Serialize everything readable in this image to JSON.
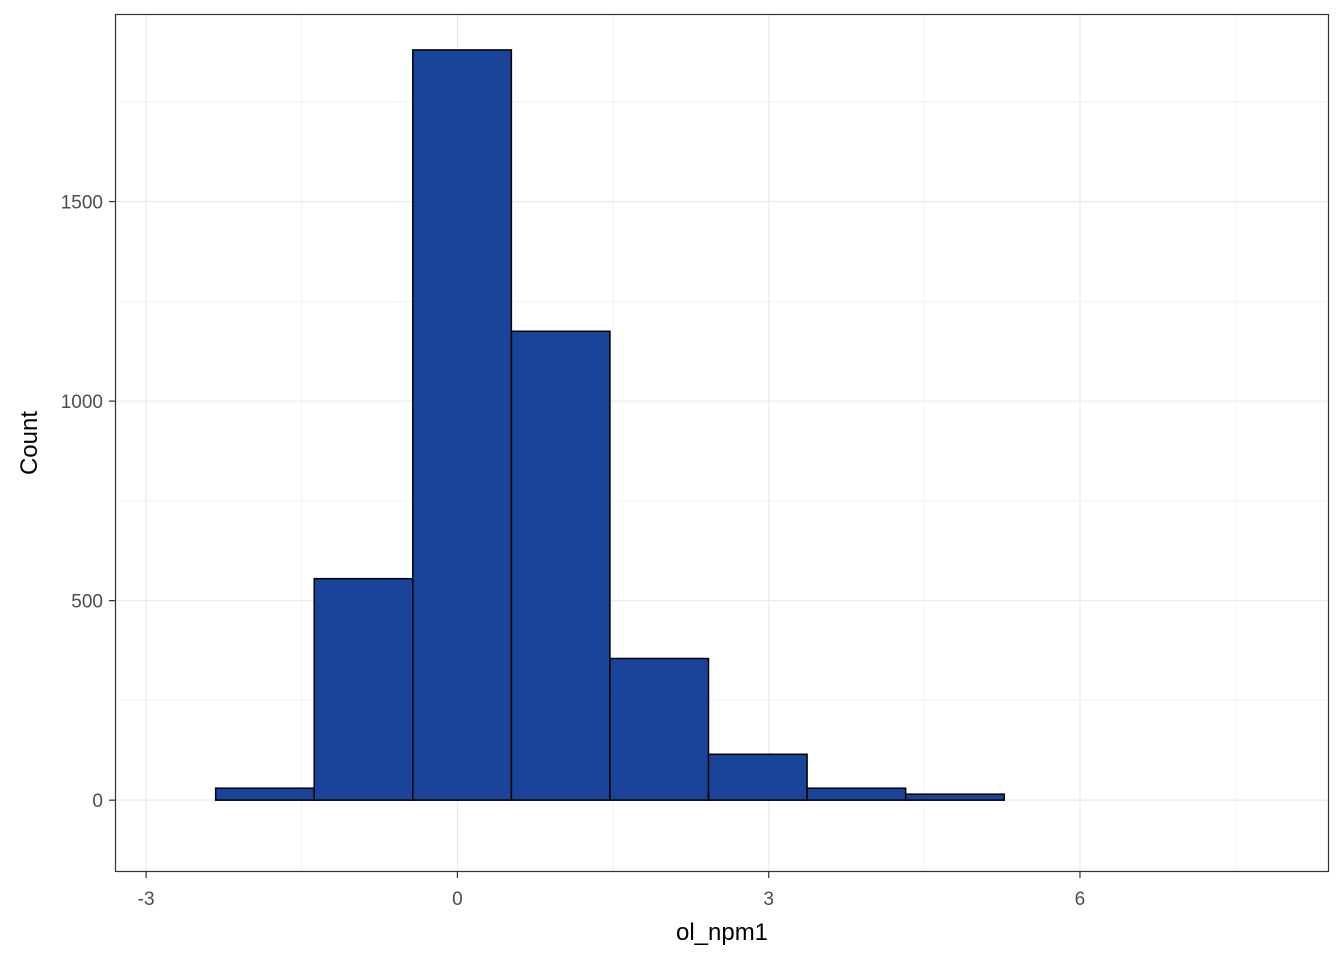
{
  "chart_data": {
    "type": "bar",
    "subtype": "histogram",
    "xlabel": "ol_npm1",
    "ylabel": "Count",
    "xlim": [
      -3.3,
      8.4
    ],
    "ylim": [
      -180,
      1970
    ],
    "x_ticks": [
      -3,
      0,
      3,
      6
    ],
    "x_tick_labels": [
      "-3",
      "0",
      "3",
      "6"
    ],
    "y_ticks": [
      0,
      500,
      1000,
      1500
    ],
    "y_tick_labels": [
      "0",
      "500",
      "1000",
      "1500"
    ],
    "grid": true,
    "theme": "bw",
    "fill_color": "#1a4499",
    "edge_color": "#000000",
    "bins": [
      {
        "x0": -3.28,
        "x1": -2.33,
        "count": 0
      },
      {
        "x0": -2.33,
        "x1": -1.38,
        "count": 30
      },
      {
        "x0": -1.38,
        "x1": -0.43,
        "count": 555
      },
      {
        "x0": -0.43,
        "x1": 0.52,
        "count": 1880
      },
      {
        "x0": 0.52,
        "x1": 1.47,
        "count": 1175
      },
      {
        "x0": 1.47,
        "x1": 2.42,
        "count": 355
      },
      {
        "x0": 2.42,
        "x1": 3.37,
        "count": 115
      },
      {
        "x0": 3.37,
        "x1": 4.32,
        "count": 30
      },
      {
        "x0": 4.32,
        "x1": 5.27,
        "count": 15
      },
      {
        "x0": 5.27,
        "x1": 6.22,
        "count": 0
      },
      {
        "x0": 6.22,
        "x1": 7.17,
        "count": 0
      },
      {
        "x0": 7.17,
        "x1": 8.12,
        "count": 0
      }
    ]
  }
}
